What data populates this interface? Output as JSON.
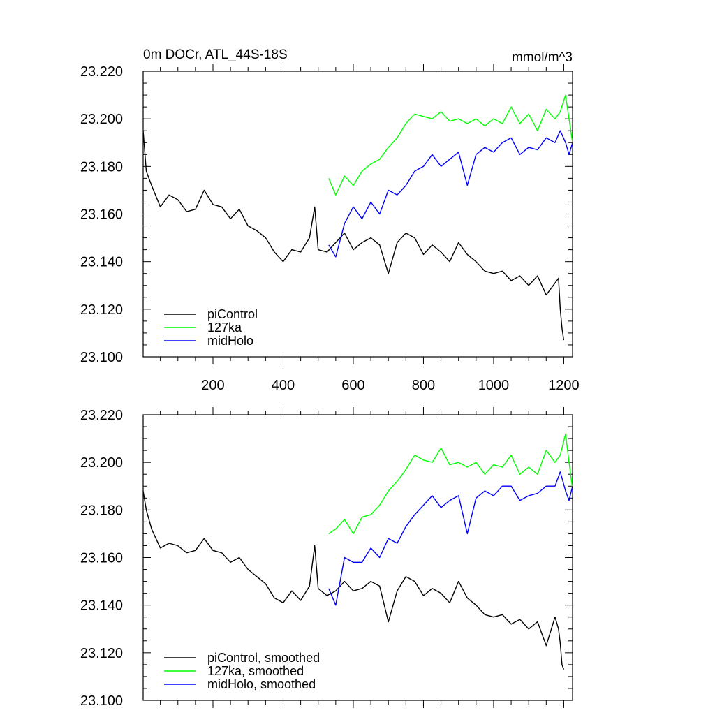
{
  "chart_data": [
    {
      "type": "line",
      "title": "0m DOCr, ATL_44S-18S",
      "units": "mmol/m^3",
      "xlabel": "",
      "ylabel": "",
      "xlim": [
        1,
        1225
      ],
      "ylim": [
        23.1,
        23.22
      ],
      "xticks": [
        200,
        400,
        600,
        800,
        1000,
        1200
      ],
      "xtick_labels": [
        "200",
        "400",
        "600",
        "800",
        "1000",
        "1200"
      ],
      "yticks": [
        23.1,
        23.12,
        23.14,
        23.16,
        23.18,
        23.2,
        23.22
      ],
      "ytick_labels": [
        "23.100",
        "23.120",
        "23.140",
        "23.160",
        "23.180",
        "23.200",
        "23.220"
      ],
      "legend_position": "bottom-left",
      "series": [
        {
          "name": "piControl",
          "color": "#000000",
          "x": [
            1,
            10,
            25,
            50,
            75,
            100,
            125,
            150,
            175,
            200,
            225,
            250,
            275,
            300,
            325,
            350,
            375,
            400,
            425,
            450,
            475,
            490,
            500,
            525,
            550,
            575,
            600,
            625,
            650,
            675,
            700,
            725,
            750,
            775,
            800,
            825,
            850,
            875,
            900,
            925,
            950,
            975,
            1000,
            1025,
            1050,
            1075,
            1100,
            1125,
            1150,
            1175,
            1185,
            1190,
            1195,
            1200
          ],
          "values": [
            23.195,
            23.178,
            23.172,
            23.163,
            23.168,
            23.166,
            23.161,
            23.162,
            23.17,
            23.164,
            23.163,
            23.158,
            23.162,
            23.155,
            23.153,
            23.15,
            23.144,
            23.14,
            23.145,
            23.144,
            23.15,
            23.163,
            23.145,
            23.144,
            23.148,
            23.152,
            23.145,
            23.148,
            23.15,
            23.147,
            23.135,
            23.148,
            23.152,
            23.15,
            23.143,
            23.147,
            23.144,
            23.14,
            23.148,
            23.143,
            23.14,
            23.136,
            23.135,
            23.136,
            23.132,
            23.134,
            23.13,
            23.134,
            23.126,
            23.131,
            23.133,
            23.12,
            23.112,
            23.107
          ]
        },
        {
          "name": "127ka",
          "color": "#00ff00",
          "x": [
            530,
            550,
            575,
            600,
            625,
            650,
            675,
            700,
            725,
            750,
            775,
            800,
            825,
            850,
            875,
            900,
            925,
            950,
            975,
            1000,
            1025,
            1050,
            1075,
            1100,
            1125,
            1150,
            1175,
            1190,
            1205,
            1215,
            1225
          ],
          "values": [
            23.175,
            23.168,
            23.176,
            23.172,
            23.178,
            23.181,
            23.183,
            23.188,
            23.192,
            23.198,
            23.202,
            23.201,
            23.2,
            23.203,
            23.199,
            23.2,
            23.198,
            23.2,
            23.197,
            23.2,
            23.198,
            23.205,
            23.198,
            23.202,
            23.195,
            23.204,
            23.2,
            23.203,
            23.21,
            23.2,
            23.19
          ]
        },
        {
          "name": "midHolo",
          "color": "#0000ff",
          "x": [
            530,
            550,
            575,
            600,
            625,
            650,
            675,
            700,
            725,
            750,
            775,
            800,
            825,
            850,
            875,
            900,
            925,
            950,
            975,
            1000,
            1025,
            1050,
            1075,
            1100,
            1125,
            1150,
            1175,
            1190,
            1205,
            1215,
            1225
          ],
          "values": [
            23.147,
            23.142,
            23.156,
            23.163,
            23.158,
            23.165,
            23.16,
            23.17,
            23.168,
            23.172,
            23.178,
            23.18,
            23.185,
            23.18,
            23.183,
            23.186,
            23.172,
            23.185,
            23.188,
            23.186,
            23.19,
            23.192,
            23.185,
            23.188,
            23.187,
            23.192,
            23.19,
            23.195,
            23.19,
            23.185,
            23.19
          ]
        }
      ]
    },
    {
      "type": "line",
      "title": "",
      "xlabel": "",
      "ylabel": "",
      "xlim": [
        1,
        1225
      ],
      "ylim": [
        23.1,
        23.22
      ],
      "yticks": [
        23.1,
        23.12,
        23.14,
        23.16,
        23.18,
        23.2,
        23.22
      ],
      "ytick_labels": [
        "23.100",
        "23.120",
        "23.140",
        "23.160",
        "23.180",
        "23.200",
        "23.220"
      ],
      "legend_position": "bottom-left",
      "series": [
        {
          "name": "piControl, smoothed",
          "color": "#000000",
          "x": [
            1,
            10,
            25,
            50,
            75,
            100,
            125,
            150,
            175,
            200,
            225,
            250,
            275,
            300,
            325,
            350,
            375,
            400,
            425,
            450,
            475,
            490,
            500,
            525,
            550,
            575,
            600,
            625,
            650,
            675,
            700,
            725,
            750,
            775,
            800,
            825,
            850,
            875,
            900,
            925,
            950,
            975,
            1000,
            1025,
            1050,
            1075,
            1100,
            1125,
            1150,
            1175,
            1185,
            1190,
            1195,
            1200
          ],
          "values": [
            23.188,
            23.18,
            23.172,
            23.164,
            23.166,
            23.165,
            23.162,
            23.163,
            23.168,
            23.163,
            23.162,
            23.158,
            23.16,
            23.155,
            23.152,
            23.149,
            23.143,
            23.141,
            23.146,
            23.142,
            23.148,
            23.165,
            23.147,
            23.144,
            23.146,
            23.15,
            23.146,
            23.147,
            23.15,
            23.148,
            23.133,
            23.146,
            23.152,
            23.15,
            23.144,
            23.147,
            23.145,
            23.141,
            23.15,
            23.143,
            23.14,
            23.136,
            23.135,
            23.136,
            23.132,
            23.134,
            23.13,
            23.133,
            23.123,
            23.135,
            23.13,
            23.124,
            23.115,
            23.113
          ]
        },
        {
          "name": "127ka, smoothed",
          "color": "#00ff00",
          "x": [
            530,
            550,
            575,
            600,
            625,
            650,
            675,
            700,
            725,
            750,
            775,
            800,
            825,
            850,
            875,
            900,
            925,
            950,
            975,
            1000,
            1025,
            1050,
            1075,
            1100,
            1125,
            1150,
            1175,
            1190,
            1205,
            1215,
            1225
          ],
          "values": [
            23.17,
            23.172,
            23.176,
            23.17,
            23.177,
            23.178,
            23.182,
            23.188,
            23.192,
            23.197,
            23.203,
            23.201,
            23.2,
            23.206,
            23.199,
            23.2,
            23.198,
            23.2,
            23.195,
            23.199,
            23.198,
            23.203,
            23.195,
            23.198,
            23.195,
            23.205,
            23.2,
            23.203,
            23.212,
            23.2,
            23.189
          ]
        },
        {
          "name": "midHolo, smoothed",
          "color": "#0000ff",
          "x": [
            530,
            550,
            575,
            600,
            625,
            650,
            675,
            700,
            725,
            750,
            775,
            800,
            825,
            850,
            875,
            900,
            925,
            950,
            975,
            1000,
            1025,
            1050,
            1075,
            1100,
            1125,
            1150,
            1175,
            1190,
            1205,
            1215,
            1225
          ],
          "values": [
            23.147,
            23.14,
            23.16,
            23.158,
            23.158,
            23.164,
            23.16,
            23.168,
            23.166,
            23.173,
            23.178,
            23.182,
            23.186,
            23.181,
            23.184,
            23.186,
            23.17,
            23.185,
            23.188,
            23.186,
            23.19,
            23.19,
            23.184,
            23.186,
            23.187,
            23.19,
            23.19,
            23.196,
            23.188,
            23.184,
            23.19
          ]
        }
      ]
    }
  ]
}
